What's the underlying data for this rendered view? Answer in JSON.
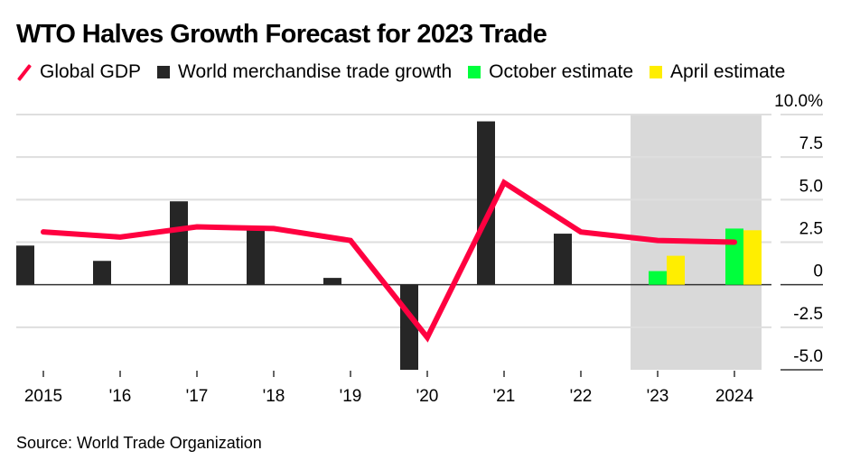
{
  "title": "WTO Halves Growth Forecast for 2023 Trade",
  "source": "Source: World Trade Organization",
  "legend": [
    {
      "label": "Global GDP",
      "symbol": "line",
      "color": "#ff0040"
    },
    {
      "label": "World merchandise trade growth",
      "symbol": "square",
      "color": "#262626"
    },
    {
      "label": "October estimate",
      "symbol": "square",
      "color": "#00ff3c"
    },
    {
      "label": "April estimate",
      "symbol": "square",
      "color": "#ffee00"
    }
  ],
  "chart_data": {
    "type": "bar",
    "title": "WTO Halves Growth Forecast for 2023 Trade",
    "xlabel": "",
    "ylabel": "",
    "categories": [
      "2015",
      "'16",
      "'17",
      "'18",
      "'19",
      "'20",
      "'21",
      "'22",
      "'23",
      "2024"
    ],
    "ylim": [
      -5.0,
      10.0
    ],
    "yticks": [
      10.0,
      7.5,
      5.0,
      2.5,
      0,
      -2.5,
      -5.0
    ],
    "ytick_labels": [
      "10.0%",
      "7.5",
      "5.0",
      "2.5",
      "0",
      "-2.5",
      "-5.0"
    ],
    "y_axis_side": "right",
    "grid": true,
    "legend_position": "top-left",
    "shaded_region": {
      "from": "'23",
      "to": "2024",
      "color": "#d9d9d9",
      "meaning": "forecast"
    },
    "series": [
      {
        "name": "World merchandise trade growth",
        "type": "bar",
        "color": "#262626",
        "values": [
          2.3,
          1.4,
          4.9,
          3.2,
          0.4,
          -5.0,
          9.6,
          3.0,
          null,
          null
        ]
      },
      {
        "name": "October estimate",
        "type": "bar",
        "color": "#00ff3c",
        "values": [
          null,
          null,
          null,
          null,
          null,
          null,
          null,
          null,
          0.8,
          3.3
        ]
      },
      {
        "name": "April estimate",
        "type": "bar",
        "color": "#ffee00",
        "values": [
          null,
          null,
          null,
          null,
          null,
          null,
          null,
          null,
          1.7,
          3.2
        ]
      },
      {
        "name": "Global GDP",
        "type": "line",
        "color": "#ff0040",
        "values": [
          3.1,
          2.8,
          3.4,
          3.3,
          2.6,
          -3.1,
          6.0,
          3.1,
          2.6,
          2.5
        ]
      }
    ]
  }
}
